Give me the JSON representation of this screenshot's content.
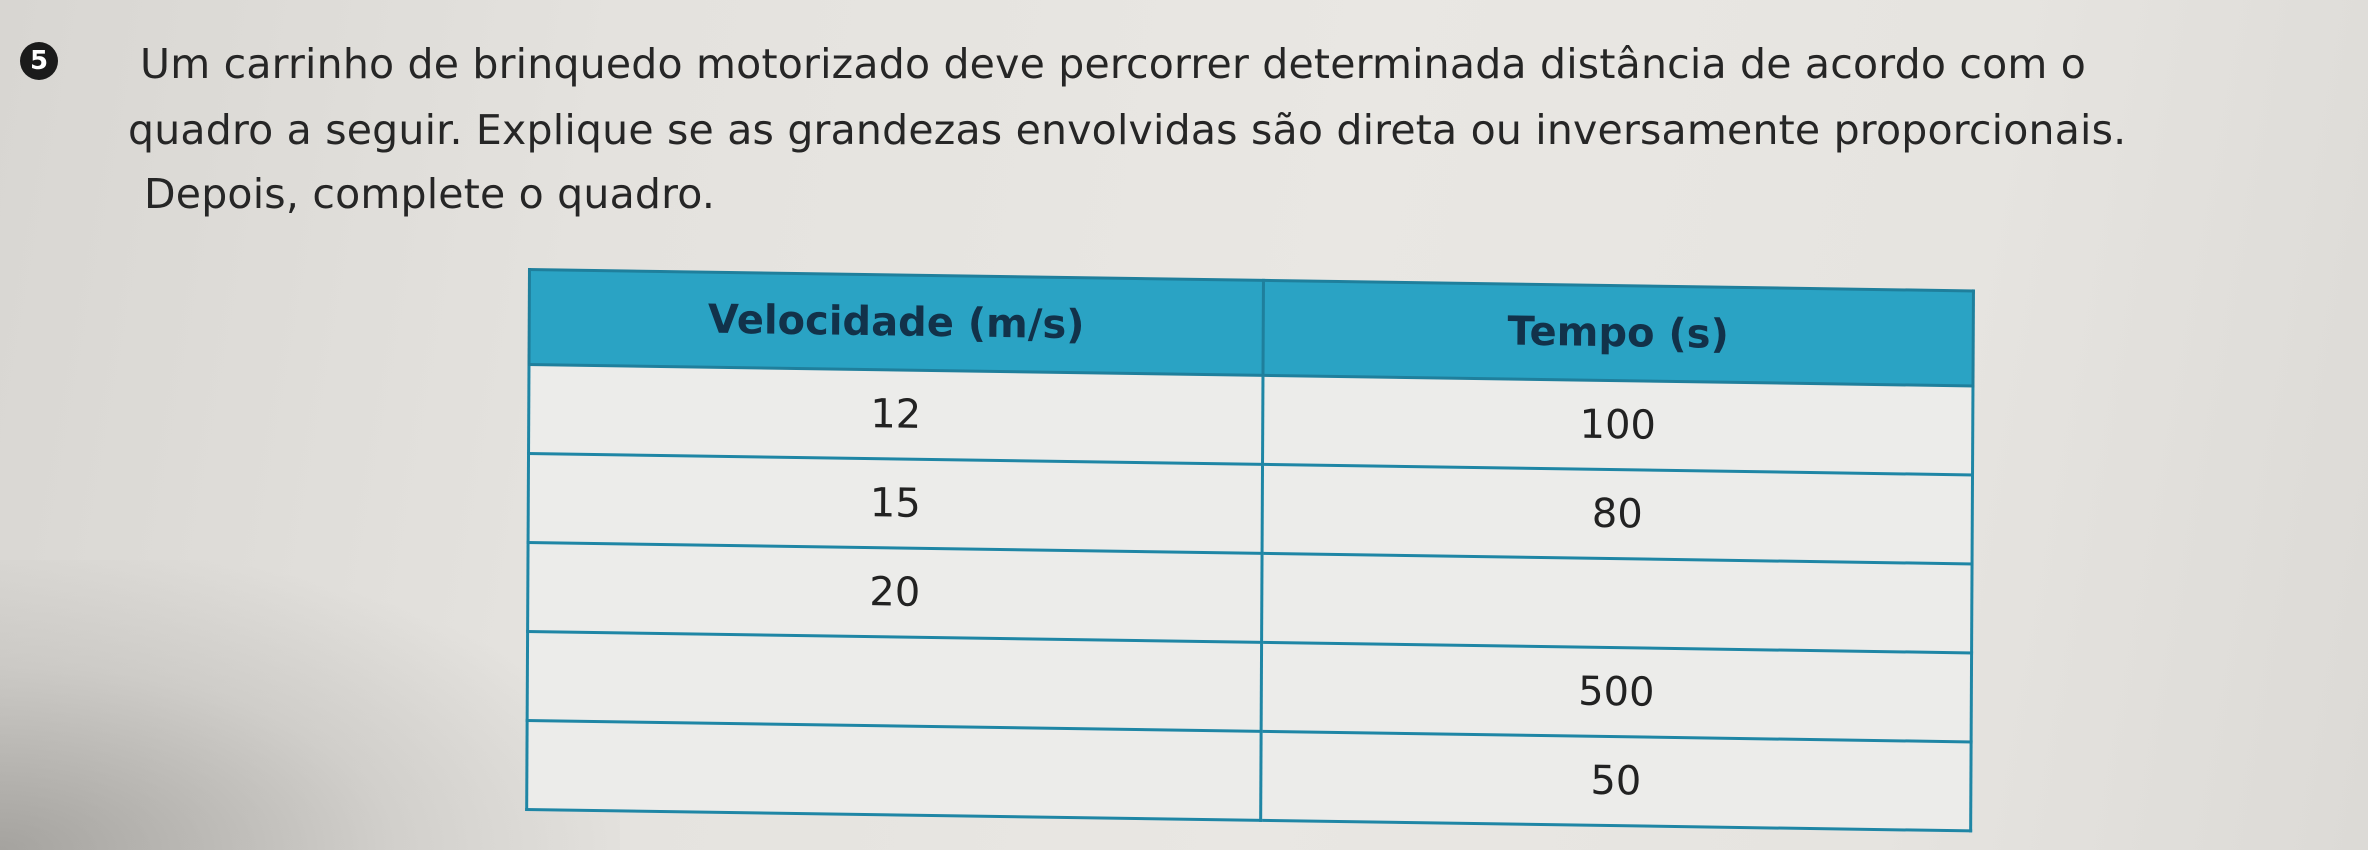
{
  "question": {
    "number": "5",
    "lines": [
      "Um carrinho de brinquedo motorizado deve percorrer determinada distância de acordo com o",
      "quadro a seguir. Explique se as grandezas envolvidas são direta ou inversamente proporcionais.",
      "Depois, complete o quadro."
    ]
  },
  "table": {
    "headers": [
      "Velocidade (m/s)",
      "Tempo (s)"
    ],
    "rows": [
      [
        "12",
        "100"
      ],
      [
        "15",
        "80"
      ],
      [
        "20",
        ""
      ],
      [
        "",
        "500"
      ],
      [
        "",
        "50"
      ]
    ]
  },
  "colors": {
    "header_fill": "#2aa3c4",
    "grid_line": "#1f86a5",
    "number_badge": "#1b1b1b"
  }
}
